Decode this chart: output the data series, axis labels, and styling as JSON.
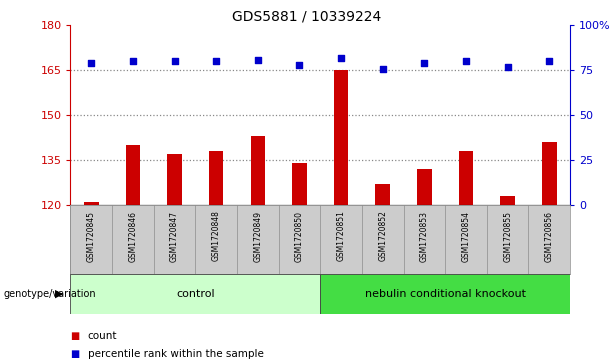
{
  "title": "GDS5881 / 10339224",
  "samples": [
    "GSM1720845",
    "GSM1720846",
    "GSM1720847",
    "GSM1720848",
    "GSM1720849",
    "GSM1720850",
    "GSM1720851",
    "GSM1720852",
    "GSM1720853",
    "GSM1720854",
    "GSM1720855",
    "GSM1720856"
  ],
  "counts": [
    121,
    140,
    137,
    138,
    143,
    134,
    165,
    127,
    132,
    138,
    123,
    141
  ],
  "percentiles": [
    79,
    80,
    80,
    80,
    81,
    78,
    82,
    76,
    79,
    80,
    77,
    80
  ],
  "ymin": 120,
  "ymax": 180,
  "yticks": [
    120,
    135,
    150,
    165,
    180
  ],
  "y2ticks": [
    0,
    25,
    50,
    75,
    100
  ],
  "y2labels": [
    "0",
    "25",
    "50",
    "75",
    "100%"
  ],
  "groups": [
    {
      "label": "control",
      "start": 0,
      "end": 6,
      "color": "#ccffcc"
    },
    {
      "label": "nebulin conditional knockout",
      "start": 6,
      "end": 12,
      "color": "#44dd44"
    }
  ],
  "bar_color": "#cc0000",
  "dot_color": "#0000cc",
  "dotted_line_color": "#888888",
  "sample_bg_color": "#cccccc",
  "sample_border_color": "#888888",
  "legend_count_color": "#cc0000",
  "legend_pct_color": "#0000cc",
  "genotype_label": "genotype/variation",
  "title_fontsize": 10,
  "bar_width": 0.35
}
